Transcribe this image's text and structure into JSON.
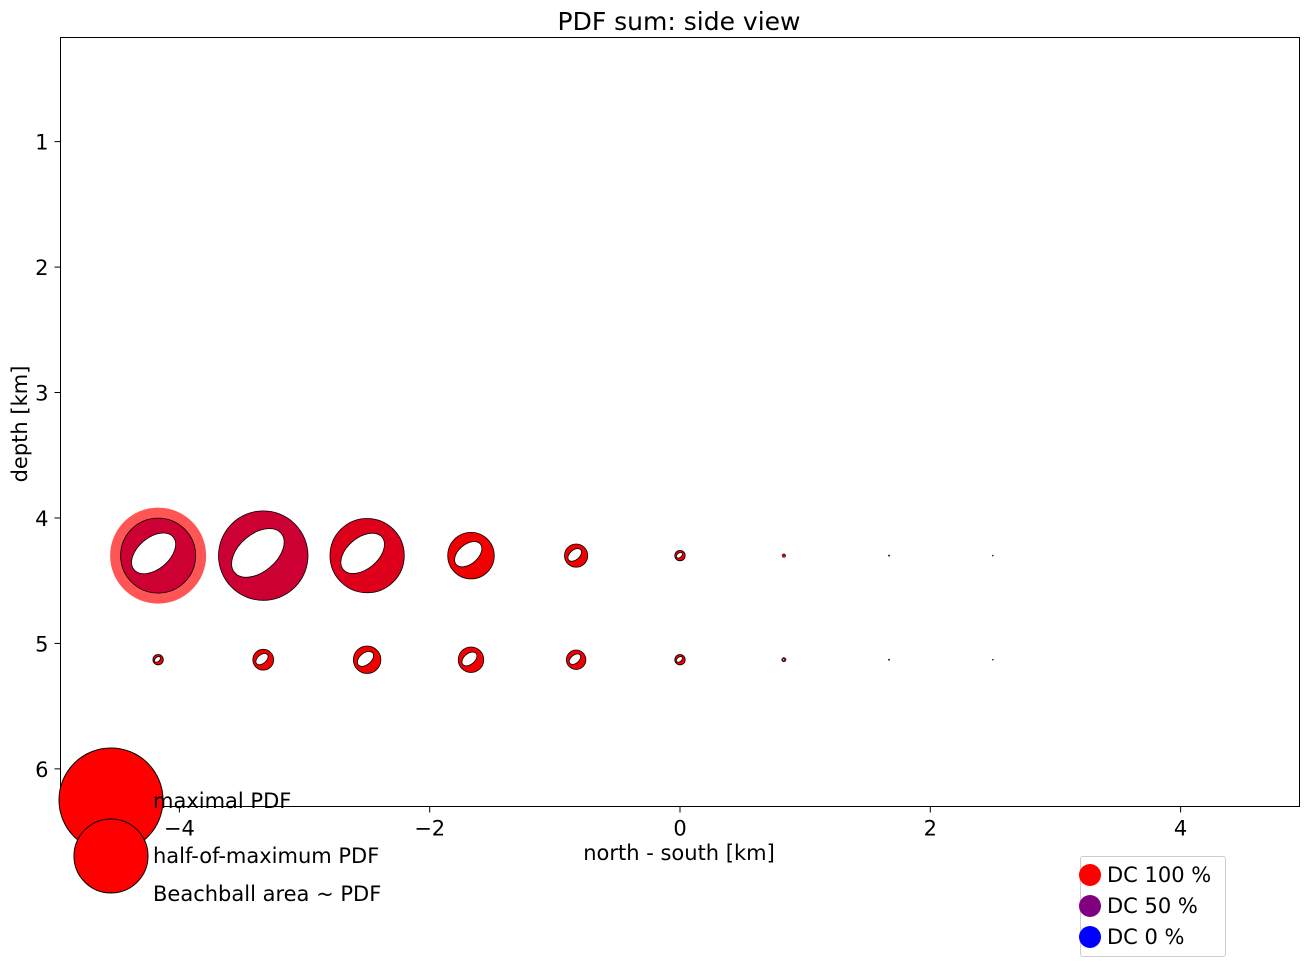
{
  "chart_data": {
    "type": "scatter",
    "title": "PDF sum: side view",
    "xlabel": "north - south [km]",
    "ylabel": "depth [km]",
    "xlim": [
      -4.95,
      4.95
    ],
    "ylim": [
      6.3,
      0.17
    ],
    "y_inverted": true,
    "xticks": [
      -4,
      -2,
      0,
      2,
      4
    ],
    "xtick_labels": [
      "−4",
      "−2",
      "0",
      "2",
      "4"
    ],
    "yticks": [
      1,
      2,
      3,
      4,
      5,
      6
    ],
    "ytick_labels": [
      "1",
      "2",
      "3",
      "4",
      "5",
      "6"
    ],
    "grid": false,
    "marker": "beachball",
    "series": [
      {
        "depth": 4.3,
        "points": [
          {
            "x": -4.17,
            "relative_pdf": 0.52,
            "dc_percent": 90,
            "highlighted_maximum": true
          },
          {
            "x": -3.33,
            "relative_pdf": 0.74,
            "dc_percent": 90
          },
          {
            "x": -2.5,
            "relative_pdf": 0.51,
            "dc_percent": 95
          },
          {
            "x": -1.67,
            "relative_pdf": 0.2,
            "dc_percent": 100
          },
          {
            "x": -0.83,
            "relative_pdf": 0.05,
            "dc_percent": 100
          },
          {
            "x": 0.0,
            "relative_pdf": 0.01,
            "dc_percent": 100
          },
          {
            "x": 0.83,
            "relative_pdf": 0.0012,
            "dc_percent": 100
          },
          {
            "x": 1.67,
            "relative_pdf": 0.0002,
            "dc_percent": 100
          },
          {
            "x": 2.5,
            "relative_pdf": 0.0001,
            "dc_percent": 100
          }
        ]
      },
      {
        "depth": 5.13,
        "points": [
          {
            "x": -4.17,
            "relative_pdf": 0.01,
            "dc_percent": 100
          },
          {
            "x": -3.33,
            "relative_pdf": 0.04,
            "dc_percent": 100
          },
          {
            "x": -2.5,
            "relative_pdf": 0.07,
            "dc_percent": 100
          },
          {
            "x": -1.67,
            "relative_pdf": 0.06,
            "dc_percent": 100
          },
          {
            "x": -0.83,
            "relative_pdf": 0.035,
            "dc_percent": 100
          },
          {
            "x": 0.0,
            "relative_pdf": 0.01,
            "dc_percent": 100
          },
          {
            "x": 0.83,
            "relative_pdf": 0.0018,
            "dc_percent": 100
          },
          {
            "x": 1.67,
            "relative_pdf": 0.0002,
            "dc_percent": 100
          },
          {
            "x": 2.5,
            "relative_pdf": 0.0001,
            "dc_percent": 100
          }
        ]
      }
    ],
    "size_legend": {
      "items": [
        {
          "label": "maximal PDF",
          "relative_pdf": 1.0
        },
        {
          "label": "half-of-maximum PDF",
          "relative_pdf": 0.5
        }
      ],
      "note": "Beachball area ~ PDF"
    },
    "color_legend": {
      "position": "bottom-right",
      "items": [
        {
          "label": "DC 100 %",
          "color": "#ff0000"
        },
        {
          "label": "DC 50 %",
          "color": "#800080"
        },
        {
          "label": "DC 0 %",
          "color": "#0000ff"
        }
      ]
    },
    "colors": {
      "highlight_halo": "#ff5555",
      "stroke": "#000000",
      "nodal_fill": "#ffffff"
    }
  }
}
